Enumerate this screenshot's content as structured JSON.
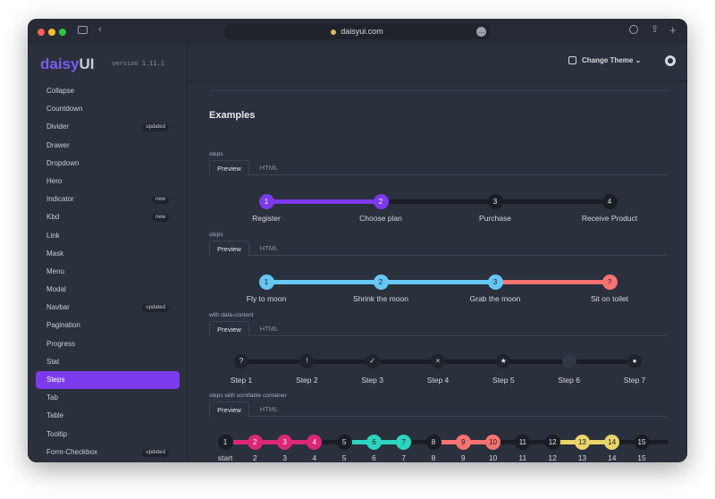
{
  "browser": {
    "url": "daisyui.com"
  },
  "brand": {
    "daisy": "daisy",
    "ui": "UI",
    "version": "version 1.11.1"
  },
  "sidebar": {
    "items": [
      {
        "label": "Collapse",
        "badge": ""
      },
      {
        "label": "Countdown",
        "badge": ""
      },
      {
        "label": "Divider",
        "badge": "updated"
      },
      {
        "label": "Drawer",
        "badge": ""
      },
      {
        "label": "Dropdown",
        "badge": ""
      },
      {
        "label": "Hero",
        "badge": ""
      },
      {
        "label": "Indicator",
        "badge": "new"
      },
      {
        "label": "Kbd",
        "badge": "new"
      },
      {
        "label": "Link",
        "badge": ""
      },
      {
        "label": "Mask",
        "badge": ""
      },
      {
        "label": "Menu",
        "badge": ""
      },
      {
        "label": "Modal",
        "badge": ""
      },
      {
        "label": "Navbar",
        "badge": "updated"
      },
      {
        "label": "Pagination",
        "badge": ""
      },
      {
        "label": "Progress",
        "badge": ""
      },
      {
        "label": "Stat",
        "badge": ""
      },
      {
        "label": "Steps",
        "badge": "",
        "active": true
      },
      {
        "label": "Tab",
        "badge": ""
      },
      {
        "label": "Table",
        "badge": ""
      },
      {
        "label": "Tooltip",
        "badge": ""
      },
      {
        "label": "Form-Checkbox",
        "badge": "updated"
      }
    ]
  },
  "topbar": {
    "theme_label": "Change Theme"
  },
  "main": {
    "heading": "Examples",
    "tab_preview": "Preview",
    "tab_html": "HTML",
    "sections": [
      {
        "label": "steps",
        "steps": [
          {
            "content": "1",
            "label": "Register",
            "state": "primary"
          },
          {
            "content": "2",
            "label": "Choose plan",
            "state": "primary"
          },
          {
            "content": "3",
            "label": "Purchase",
            "state": "none"
          },
          {
            "content": "4",
            "label": "Receive Product",
            "state": "none"
          }
        ]
      },
      {
        "label": "steps",
        "steps": [
          {
            "content": "1",
            "label": "Fly to moon",
            "state": "info"
          },
          {
            "content": "2",
            "label": "Shrink the moon",
            "state": "info"
          },
          {
            "content": "3",
            "label": "Grab the moon",
            "state": "info"
          },
          {
            "content": "?",
            "label": "Sit on toilet",
            "state": "error"
          }
        ]
      },
      {
        "label": "with data-content",
        "steps": [
          {
            "content": "?",
            "label": "Step 1",
            "state": "neutral"
          },
          {
            "content": "!",
            "label": "Step 2",
            "state": "neutral"
          },
          {
            "content": "✓",
            "label": "Step 3",
            "state": "neutral"
          },
          {
            "content": "×",
            "label": "Step 4",
            "state": "neutral"
          },
          {
            "content": "★",
            "label": "Step 5",
            "state": "neutral"
          },
          {
            "content": "",
            "label": "Step 6",
            "state": "neutral"
          },
          {
            "content": "●",
            "label": "Step 7",
            "state": "neutral"
          }
        ]
      },
      {
        "label": "steps with scrollable container",
        "steps": [
          {
            "content": "1",
            "label": "start",
            "state": "none"
          },
          {
            "content": "2",
            "label": "2",
            "state": "secondary"
          },
          {
            "content": "3",
            "label": "3",
            "state": "secondary"
          },
          {
            "content": "4",
            "label": "4",
            "state": "secondary"
          },
          {
            "content": "5",
            "label": "5",
            "state": "none"
          },
          {
            "content": "6",
            "label": "6",
            "state": "accent"
          },
          {
            "content": "7",
            "label": "7",
            "state": "accent"
          },
          {
            "content": "8",
            "label": "8",
            "state": "none"
          },
          {
            "content": "9",
            "label": "9",
            "state": "error"
          },
          {
            "content": "10",
            "label": "10",
            "state": "error"
          },
          {
            "content": "11",
            "label": "11",
            "state": "none"
          },
          {
            "content": "12",
            "label": "12",
            "state": "none"
          },
          {
            "content": "13",
            "label": "13",
            "state": "warning"
          },
          {
            "content": "14",
            "label": "14",
            "state": "warning"
          },
          {
            "content": "15",
            "label": "15",
            "state": "none"
          }
        ]
      }
    ]
  },
  "colors": {
    "primary": "#7c3aed",
    "secondary": "#db2777",
    "accent": "#2dd4bf",
    "info": "#66c7f4",
    "error": "#f87272",
    "warning": "#e9d46a",
    "none": "#1a1d24",
    "neutral": "#1f232c",
    "track_off": "#1a1d24"
  }
}
